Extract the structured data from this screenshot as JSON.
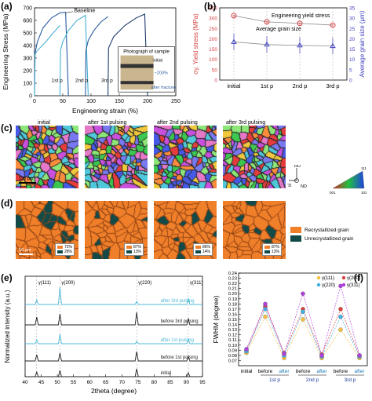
{
  "figure": {
    "panel_labels": [
      "(a)",
      "(b)",
      "(c)",
      "(d)",
      "(e)",
      "(f)"
    ],
    "colors": {
      "baseline": "#3a7abf",
      "pulsed": "#1b3a6b",
      "light": "#4cb8d8",
      "recryst": "#f07f2a",
      "unrecryst": "#134a48",
      "yield": "#d94040",
      "grain": "#4040c0"
    }
  },
  "panel_a": {
    "chart_data": {
      "type": "line",
      "xlabel": "Engineering strain (%)",
      "ylabel": "Engineering Stress (MPa)",
      "xlim": [
        0,
        250
      ],
      "ylim": [
        0,
        700
      ],
      "xticks": [
        0,
        50,
        100,
        150,
        200,
        250
      ],
      "yticks": [
        0,
        100,
        200,
        300,
        400,
        500,
        600,
        700
      ],
      "series": [
        {
          "name": "Baseline",
          "x": [
            0,
            1,
            5,
            15,
            30,
            45,
            55,
            60
          ],
          "y": [
            0,
            340,
            430,
            540,
            620,
            660,
            665,
            0
          ]
        },
        {
          "name": "",
          "x": [
            0,
            1,
            5,
            20,
            35,
            45
          ],
          "y": [
            0,
            330,
            360,
            430,
            510,
            560
          ]
        },
        {
          "name": "",
          "x": [
            45,
            46,
            50,
            60,
            75,
            90,
            95
          ],
          "y": [
            0,
            360,
            430,
            520,
            600,
            640,
            0
          ]
        },
        {
          "name": "",
          "x": [
            90,
            91,
            95,
            105,
            118,
            130
          ],
          "y": [
            0,
            360,
            440,
            520,
            590,
            630
          ]
        },
        {
          "name": "",
          "x": [
            130,
            131,
            140,
            160,
            180,
            195,
            200
          ],
          "y": [
            0,
            380,
            470,
            560,
            620,
            650,
            0
          ]
        }
      ],
      "annotations": [
        "Baseline",
        "1st p",
        "2nd p",
        "3rd p"
      ]
    },
    "inset_title": "Photograph of sample",
    "inset_labels": [
      "initial",
      "~200%",
      "after fracture"
    ]
  },
  "panel_b": {
    "chart_data": {
      "type": "line",
      "categories": [
        "initial",
        "1st p",
        "2nd p",
        "3rd p"
      ],
      "ylabel_left": "σy, Yield stress (MPa)",
      "ylabel_right": "Average grain size (μm)",
      "ylim_left": [
        0,
        350
      ],
      "ylim_right": [
        0,
        35
      ],
      "yticks_left": [
        0,
        50,
        100,
        150,
        200,
        250,
        300,
        350
      ],
      "yticks_right": [
        0,
        5,
        10,
        15,
        20,
        25,
        30,
        35
      ],
      "series": [
        {
          "name": "Engineering yield stress",
          "values": [
            312,
            282,
            275,
            266
          ],
          "axis": "left"
        },
        {
          "name": "Average grain size",
          "values": [
            18.5,
            17.2,
            16.8,
            16.5
          ],
          "axis": "right"
        }
      ]
    }
  },
  "panel_c": {
    "labels": [
      "initial",
      "after 1st pulsing",
      "after 2nd pulsing",
      "after 3rd pulsing"
    ],
    "scale": "125 μm",
    "ipf": {
      "rd": "RD",
      "td": "TD",
      "nd": "ND",
      "c1": "001",
      "c2": "101",
      "c3": "111"
    }
  },
  "panel_d": {
    "scale": "50 μm",
    "legend": [
      "Recrystallized grain",
      "Unrecrystallized grain"
    ],
    "fractions": [
      {
        "r": "72%",
        "u": "28%"
      },
      {
        "r": "87%",
        "u": "13%"
      },
      {
        "r": "86%",
        "u": "14%"
      },
      {
        "r": "87%",
        "u": "13%"
      }
    ]
  },
  "panel_e": {
    "chart_data": {
      "type": "line",
      "xlabel": "2theta (degree)",
      "ylabel": "Normalized intensity (a.u.)",
      "xlim": [
        40,
        95
      ],
      "xticks": [
        40,
        45,
        50,
        55,
        60,
        65,
        70,
        75,
        80,
        85,
        90,
        95
      ],
      "peaks": [
        {
          "label": "γ(111)",
          "x": 43.6
        },
        {
          "label": "γ(200)",
          "x": 50.8
        },
        {
          "label": "γ(220)",
          "x": 74.6
        },
        {
          "label": "γ(311)",
          "x": 90.6
        }
      ],
      "traces": [
        "after 3rd pulsing",
        "before 3rd pulsing",
        "after 1st pulsing",
        "before 1st pulsing",
        "initial"
      ]
    }
  },
  "panel_f": {
    "chart_data": {
      "type": "line",
      "ylabel": "FWHM (degree)",
      "ylim": [
        0.06,
        0.24
      ],
      "yticks": [
        0.07,
        0.08,
        0.09,
        0.1,
        0.11,
        0.12,
        0.13,
        0.14,
        0.15,
        0.16,
        0.17,
        0.18,
        0.19,
        0.2,
        0.21,
        0.22,
        0.23,
        0.24
      ],
      "categories": [
        "initial",
        "before",
        "after",
        "before",
        "after",
        "before",
        "after"
      ],
      "groups": [
        "1st p",
        "2nd p",
        "3rd p"
      ],
      "series": [
        {
          "name": "γ(111)",
          "values": [
            0.085,
            0.155,
            0.075,
            0.15,
            0.075,
            0.13,
            0.075
          ]
        },
        {
          "name": "γ(200)",
          "values": [
            0.09,
            0.175,
            0.085,
            0.17,
            0.082,
            0.17,
            0.08
          ]
        },
        {
          "name": "γ(220)",
          "values": [
            0.088,
            0.17,
            0.08,
            0.165,
            0.078,
            0.155,
            0.078
          ]
        },
        {
          "name": "γ(311)",
          "values": [
            0.092,
            0.18,
            0.083,
            0.2,
            0.08,
            0.215,
            0.08
          ]
        }
      ]
    }
  }
}
